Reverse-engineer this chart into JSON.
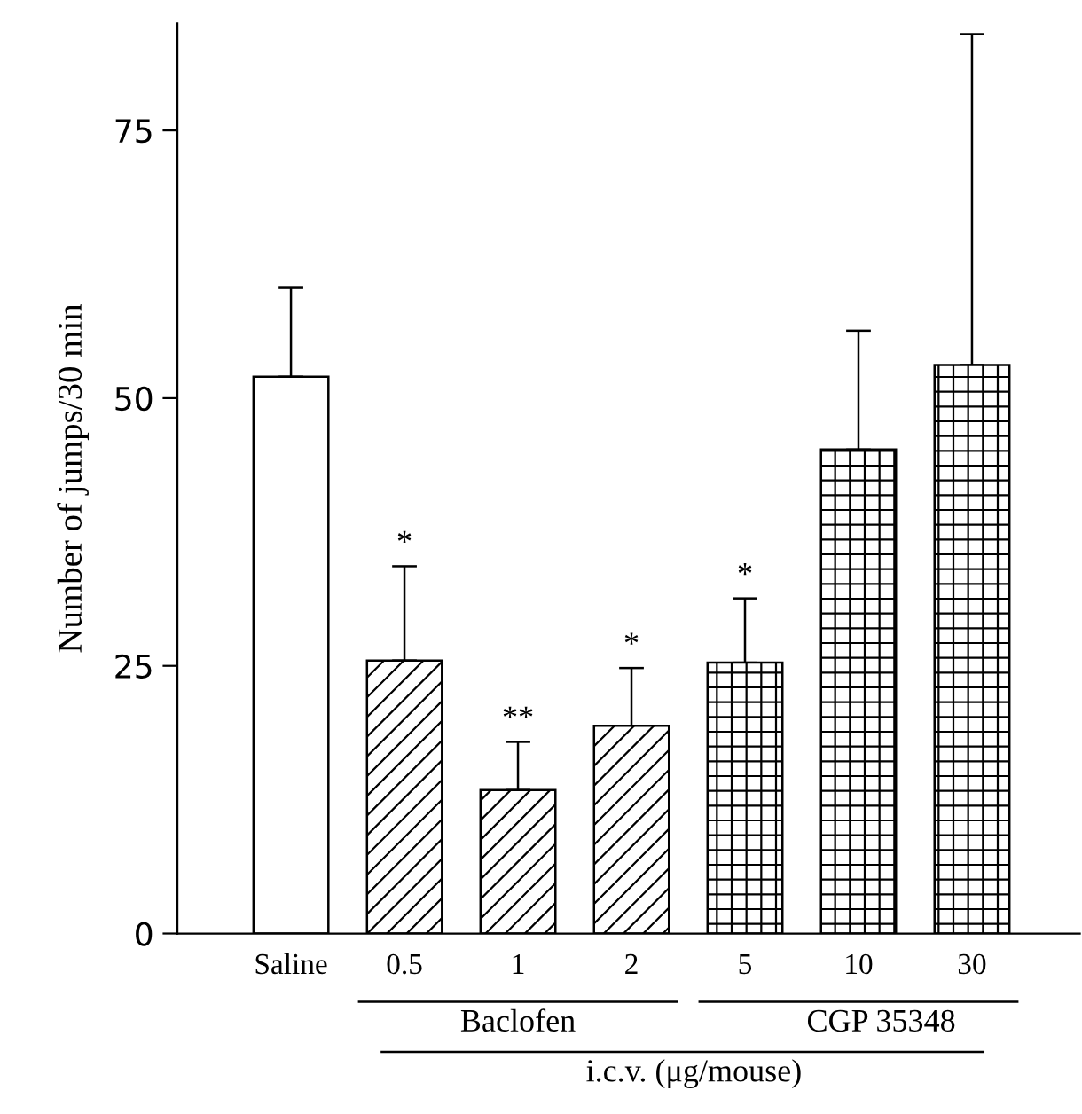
{
  "chart_data": {
    "type": "bar",
    "ylabel": "Number of jumps/30 min",
    "xlabel": "i.c.v. (μg/mouse)",
    "categories": [
      "Saline",
      "0.5",
      "1",
      "2",
      "5",
      "10",
      "30"
    ],
    "series": [
      {
        "color": "#ffffff",
        "values": [
          52.0,
          null,
          null,
          null,
          null,
          null,
          null
        ],
        "errors": [
          [
            52.0,
            60.3
          ],
          null,
          null,
          null,
          null,
          null,
          null
        ]
      },
      {
        "color": "#000000",
        "values": [
          null,
          25.5,
          13.4,
          19.4,
          null,
          null,
          null
        ],
        "errors": [
          null,
          [
            25.5,
            34.3
          ],
          [
            13.4,
            17.9
          ],
          [
            19.4,
            24.8
          ],
          null,
          null,
          null
        ]
      },
      {
        "color": "#000000",
        "values": [
          null,
          null,
          null,
          null,
          25.3,
          45.2,
          53.1
        ],
        "errors": [
          null,
          null,
          null,
          null,
          [
            25.3,
            31.3
          ],
          [
            45.2,
            56.3
          ],
          [
            53.1,
            84.0
          ]
        ]
      }
    ],
    "annotations": [
      "Baclofen",
      "CGP 35348",
      {
        "text": "*",
        "x": "0.5",
        "y": 34.3
      },
      {
        "text": "**",
        "x": "1",
        "y": 17.9
      },
      {
        "text": "*",
        "x": "2",
        "y": 24.8
      },
      {
        "text": "*",
        "x": "5",
        "y": 31.3
      }
    ],
    "ylim": [
      0,
      85
    ],
    "yticks": [
      0,
      25,
      50,
      75
    ],
    "grid": false,
    "legend": false
  }
}
